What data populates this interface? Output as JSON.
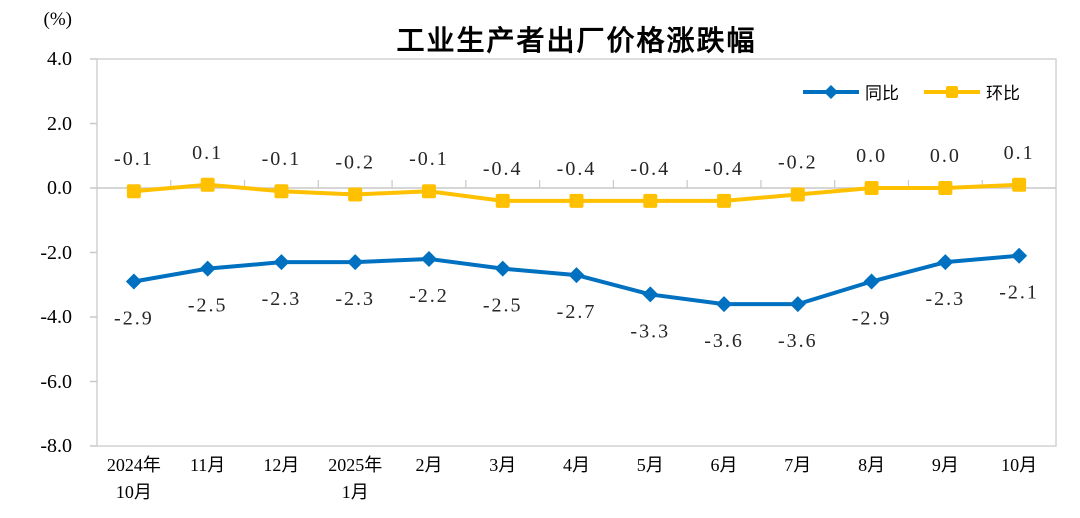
{
  "title": "工业生产者出厂价格涨跌幅",
  "unit_label": "(%)",
  "colors": {
    "yoy_blue": "#0070C0",
    "mom_gold": "#FFC000",
    "frame": "#D2D2D2",
    "zero_line": "#C9C9C9",
    "tick": "#C9C9C9",
    "data_label": "#262626",
    "axis_text": "#000000"
  },
  "chart_data": {
    "type": "line",
    "title": "工业生产者出厂价格涨跌幅",
    "ylabel": "(%)",
    "ylim": [
      -8.0,
      4.0
    ],
    "y_ticks": [
      4.0,
      2.0,
      0.0,
      -2.0,
      -4.0,
      -6.0,
      -8.0
    ],
    "grid": "zero-line-only",
    "legend_position": "top-right-inside",
    "categories": [
      "2024年\n10月",
      "11月",
      "12月",
      "2025年\n1月",
      "2月",
      "3月",
      "4月",
      "5月",
      "6月",
      "7月",
      "8月",
      "9月",
      "10月"
    ],
    "series": [
      {
        "id": "yoy",
        "name": "同比",
        "color": "#0070C0",
        "marker": "diamond",
        "label_position": "below",
        "values": [
          -2.9,
          -2.5,
          -2.3,
          -2.3,
          -2.2,
          -2.5,
          -2.7,
          -3.3,
          -3.6,
          -3.6,
          -2.9,
          -2.3,
          -2.1
        ]
      },
      {
        "id": "mom",
        "name": "环比",
        "color": "#FFC000",
        "marker": "square",
        "label_position": "above",
        "values": [
          -0.1,
          0.1,
          -0.1,
          -0.2,
          -0.1,
          -0.4,
          -0.4,
          -0.4,
          -0.4,
          -0.2,
          0.0,
          0.0,
          0.1
        ]
      }
    ]
  }
}
